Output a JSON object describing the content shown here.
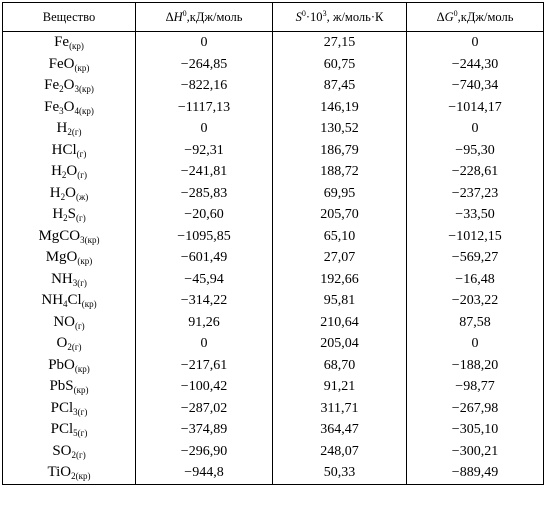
{
  "headers": {
    "substance": "Вещество",
    "dh_prefix": "Δ",
    "dh_symbol": "H",
    "dh_sup": "0",
    "dh_unit": ",кДж/моль",
    "s_symbol": "S",
    "s_sup": "0",
    "s_mid": "·10",
    "s_sup2": "3",
    "s_unit": ", ж/моль·К",
    "dg_prefix": "Δ",
    "dg_symbol": "G",
    "dg_sup": "0",
    "dg_unit": ",кДж/моль"
  },
  "rows": [
    {
      "name": "Fe",
      "state": "(кр)",
      "dh": "0",
      "s": "27,15",
      "dg": "0"
    },
    {
      "name": "FeO",
      "state": "(кр)",
      "dh": "−264,85",
      "s": "60,75",
      "dg": "−244,30"
    },
    {
      "name": "Fe2O3",
      "state": "(кр)",
      "dh": "−822,16",
      "s": "87,45",
      "dg": "−740,34"
    },
    {
      "name": "Fe3O4",
      "state": "(кр)",
      "dh": "−1117,13",
      "s": "146,19",
      "dg": "−1014,17"
    },
    {
      "name": "H2",
      "state": "(г)",
      "dh": "0",
      "s": "130,52",
      "dg": "0"
    },
    {
      "name": "HCl",
      "state": "(г)",
      "dh": "−92,31",
      "s": "186,79",
      "dg": "−95,30"
    },
    {
      "name": "H2O",
      "state": "(г)",
      "dh": "−241,81",
      "s": "188,72",
      "dg": "−228,61"
    },
    {
      "name": "H2O",
      "state": "(ж)",
      "dh": "−285,83",
      "s": "69,95",
      "dg": "−237,23"
    },
    {
      "name": "H2S",
      "state": "(г)",
      "dh": "−20,60",
      "s": "205,70",
      "dg": "−33,50"
    },
    {
      "name": "MgCO3",
      "state": "(кр)",
      "dh": "−1095,85",
      "s": "65,10",
      "dg": "−1012,15"
    },
    {
      "name": "MgO",
      "state": "(кр)",
      "dh": "−601,49",
      "s": "27,07",
      "dg": "−569,27"
    },
    {
      "name": "NH3",
      "state": "(г)",
      "dh": "−45,94",
      "s": "192,66",
      "dg": "−16,48"
    },
    {
      "name": "NH4Cl",
      "state": "(кр)",
      "dh": "−314,22",
      "s": "95,81",
      "dg": "−203,22"
    },
    {
      "name": "NO",
      "state": "(г)",
      "dh": "91,26",
      "s": "210,64",
      "dg": "87,58"
    },
    {
      "name": "O2",
      "state": "(г)",
      "dh": "0",
      "s": "205,04",
      "dg": "0"
    },
    {
      "name": "PbO",
      "state": "(кр)",
      "dh": "−217,61",
      "s": "68,70",
      "dg": "−188,20"
    },
    {
      "name": "PbS",
      "state": "(кр)",
      "dh": "−100,42",
      "s": "91,21",
      "dg": "−98,77"
    },
    {
      "name": "PCl3",
      "state": "(г)",
      "dh": "−287,02",
      "s": "311,71",
      "dg": "−267,98"
    },
    {
      "name": "PCl5",
      "state": "(г)",
      "dh": "−374,89",
      "s": "364,47",
      "dg": "−305,10"
    },
    {
      "name": "SO2",
      "state": "(г)",
      "dh": "−296,90",
      "s": "248,07",
      "dg": "−300,21"
    },
    {
      "name": "TiO2",
      "state": "(кр)",
      "dh": "−944,8",
      "s": "50,33",
      "dg": "−889,49"
    }
  ]
}
